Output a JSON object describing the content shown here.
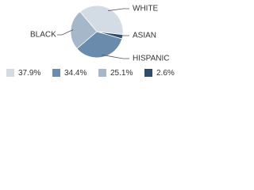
{
  "chart_data": {
    "type": "pie",
    "categories": [
      "WHITE",
      "ASIAN",
      "HISPANIC",
      "BLACK"
    ],
    "values": [
      37.9,
      2.6,
      34.4,
      25.1
    ],
    "value_labels": [
      "37.9%",
      "2.6%",
      "34.4%",
      "25.1%"
    ],
    "colors": [
      "#d3dbe4",
      "#2f4d6a",
      "#6a8bab",
      "#a6b7c9"
    ]
  }
}
